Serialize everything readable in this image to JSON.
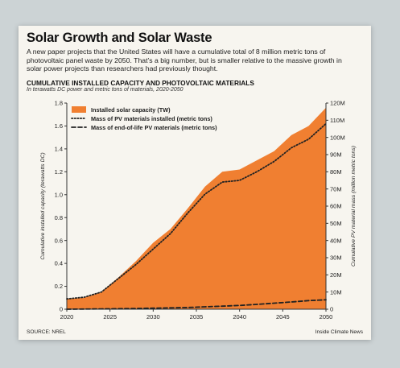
{
  "header": {
    "title": "Solar Growth and Solar Waste",
    "subtitle": "A new paper projects that the United States will have a cumulative total of 8 million metric tons of photovoltaic panel waste by 2050. That’s a big number, but is smaller relative to the massive growth in solar power projects than researchers had previously thought."
  },
  "footer": {
    "source": "SOURCE: NREL",
    "credit": "Inside Climate News"
  },
  "colors": {
    "area": "#f07f31",
    "line": "#222222",
    "background": "#f7f5ef"
  },
  "chart_data": {
    "type": "area",
    "title": "CUMULATIVE INSTALLED CAPACITY AND PHOTOVOLTAIC MATERIALS",
    "subtitle": "In terawatts DC power and metric tons of materials, 2020-2050",
    "xlabel": "",
    "ylabel_left": "Cumulative installed capacity (terawatts DC)",
    "ylabel_right": "Cumulative PV material mass (million metric tons)",
    "xlim": [
      2020,
      2050
    ],
    "ylim_left": [
      0,
      1.8
    ],
    "ylim_right": [
      0,
      120
    ],
    "x_ticks": [
      "2020",
      "2025",
      "2030",
      "2035",
      "2040",
      "2045",
      "2050"
    ],
    "y_ticks_left": [
      "0",
      "0.2",
      "0.4",
      "0.6",
      "0.8",
      "1.0",
      "1.2",
      "1.4",
      "1.6",
      "1.8"
    ],
    "y_ticks_right": [
      "0",
      "10M",
      "20M",
      "30M",
      "40M",
      "50M",
      "60M",
      "70M",
      "80M",
      "90M",
      "100M",
      "110M",
      "120M"
    ],
    "grid": false,
    "legend_position": "top-left",
    "x": [
      2020,
      2022,
      2024,
      2026,
      2028,
      2030,
      2032,
      2034,
      2036,
      2038,
      2040,
      2042,
      2044,
      2046,
      2048,
      2050
    ],
    "series": [
      {
        "name": "Installed solar capacity (TW)",
        "style": "area",
        "axis": "left",
        "values": [
          0.09,
          0.1,
          0.15,
          0.28,
          0.42,
          0.58,
          0.7,
          0.88,
          1.07,
          1.2,
          1.22,
          1.3,
          1.38,
          1.52,
          1.6,
          1.76
        ]
      },
      {
        "name": "Mass of PV materials installed (metric tons)",
        "style": "dotted",
        "axis": "right",
        "values": [
          6,
          7,
          10,
          18,
          26,
          35,
          44,
          56,
          67,
          74,
          75,
          80,
          86,
          94,
          99,
          108
        ]
      },
      {
        "name": "Mass of end-of-life PV materials (metric tons)",
        "style": "dashed",
        "axis": "right",
        "values": [
          0,
          0.1,
          0.2,
          0.3,
          0.4,
          0.6,
          0.8,
          1.0,
          1.4,
          1.8,
          2.2,
          2.8,
          3.5,
          4.2,
          5.0,
          5.5
        ]
      }
    ]
  }
}
